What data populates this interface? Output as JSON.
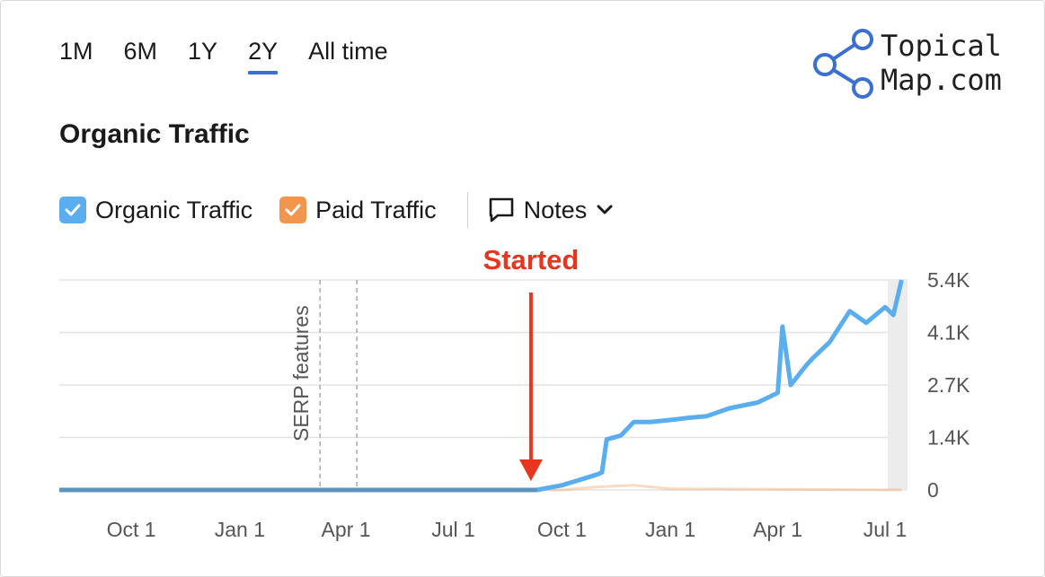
{
  "ranges": [
    "1M",
    "6M",
    "1Y",
    "2Y",
    "All time"
  ],
  "active_range": "2Y",
  "logo": {
    "line1": "Topical",
    "line2": "Map.com"
  },
  "title": "Organic Traffic",
  "legend": {
    "organic": {
      "label": "Organic Traffic",
      "color": "#5aaef0"
    },
    "paid": {
      "label": "Paid Traffic",
      "color": "#f0964e"
    },
    "notes": "Notes"
  },
  "chart_data": {
    "type": "line",
    "x_tick_labels": [
      "Oct 1",
      "Jan 1",
      "Apr 1",
      "Jul 1",
      "Oct 1",
      "Jan 1",
      "Apr 1",
      "Jul 1"
    ],
    "y_tick_labels": [
      "5.4K",
      "4.1K",
      "2.7K",
      "1.4K",
      "0"
    ],
    "ylim": [
      0,
      5400
    ],
    "grid": true,
    "annotations": [
      {
        "text": "SERP features",
        "x": "2023-03-10",
        "type": "vertical-dashed-pair"
      },
      {
        "text": "Started",
        "x": "2023-09-01",
        "type": "arrow",
        "color": "#e8361e"
      }
    ],
    "series": [
      {
        "name": "Organic Traffic",
        "color": "#5aaef0",
        "points": [
          [
            "2022-08-01",
            0
          ],
          [
            "2023-09-10",
            0
          ],
          [
            "2023-09-20",
            60
          ],
          [
            "2023-10-01",
            120
          ],
          [
            "2023-10-15",
            250
          ],
          [
            "2023-10-31",
            400
          ],
          [
            "2023-11-04",
            450
          ],
          [
            "2023-11-08",
            1300
          ],
          [
            "2023-11-20",
            1400
          ],
          [
            "2023-12-01",
            1750
          ],
          [
            "2023-12-15",
            1750
          ],
          [
            "2024-01-01",
            1800
          ],
          [
            "2024-01-15",
            1850
          ],
          [
            "2024-02-01",
            1900
          ],
          [
            "2024-02-20",
            2100
          ],
          [
            "2024-03-15",
            2250
          ],
          [
            "2024-04-01",
            2500
          ],
          [
            "2024-04-05",
            4200
          ],
          [
            "2024-04-12",
            2700
          ],
          [
            "2024-04-25",
            3200
          ],
          [
            "2024-05-01",
            3400
          ],
          [
            "2024-05-15",
            3800
          ],
          [
            "2024-06-01",
            4600
          ],
          [
            "2024-06-15",
            4300
          ],
          [
            "2024-07-01",
            4700
          ],
          [
            "2024-07-08",
            4500
          ],
          [
            "2024-07-15",
            5400
          ]
        ]
      },
      {
        "name": "Paid Traffic",
        "color": "#f0964e",
        "points": [
          [
            "2022-08-01",
            0
          ],
          [
            "2023-10-01",
            0
          ],
          [
            "2023-11-01",
            80
          ],
          [
            "2023-12-01",
            120
          ],
          [
            "2024-01-01",
            30
          ],
          [
            "2024-07-15",
            0
          ]
        ]
      }
    ]
  }
}
